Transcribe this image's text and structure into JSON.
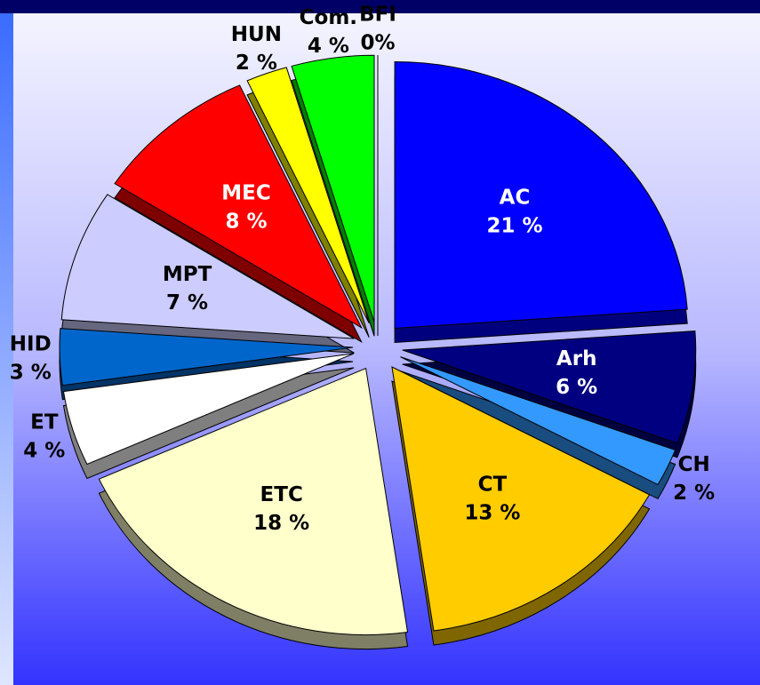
{
  "chart_data": {
    "type": "pie",
    "categories": [
      "AC",
      "Arh",
      "CH",
      "CT",
      "ETC",
      "ET",
      "HID",
      "MPT",
      "MEC",
      "HUN",
      "Com.",
      "BFI"
    ],
    "values": [
      21,
      6,
      2,
      13,
      18,
      4,
      3,
      7,
      8,
      2,
      4,
      0
    ],
    "value_labels": [
      "21 %",
      "6 %",
      "2 %",
      "13 %",
      "18 %",
      "4 %",
      "3 %",
      "7 %",
      "8 %",
      "2 %",
      "4 %",
      "0%"
    ],
    "colors": [
      "#0000ff",
      "#000080",
      "#3399ff",
      "#ffcc00",
      "#ffffcc",
      "#ffffff",
      "#0066cc",
      "#ccccff",
      "#ff0000",
      "#ffff00",
      "#00ff00",
      "#009999"
    ]
  }
}
